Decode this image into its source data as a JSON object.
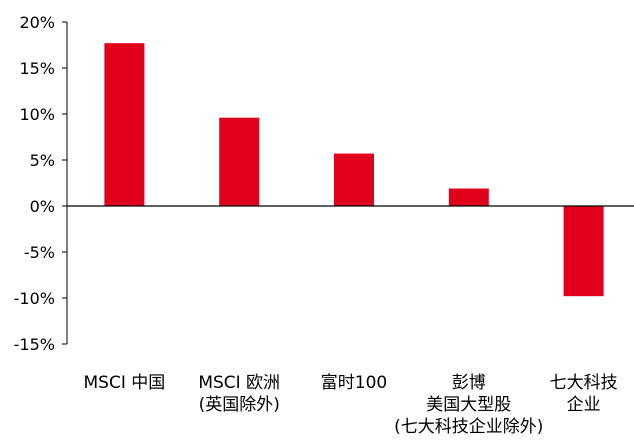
{
  "chart_data": {
    "type": "bar",
    "title": "",
    "xlabel": "",
    "ylabel": "",
    "categories": [
      [
        "MSCI 中国"
      ],
      [
        "MSCI 欧洲",
        "(英国除外)"
      ],
      [
        "富时100"
      ],
      [
        "彭博",
        "美国大型股",
        "(七大科技企业除外)"
      ],
      [
        "七大科技",
        "企业"
      ]
    ],
    "values": [
      17.7,
      9.6,
      5.7,
      1.9,
      -9.8
    ],
    "ylim": [
      -15,
      20
    ],
    "yticks": [
      20,
      15,
      10,
      5,
      0,
      -5,
      -10,
      -15
    ],
    "ytick_labels": [
      "20%",
      "15%",
      "10%",
      "5%",
      "0%",
      "-5%",
      "-10%",
      "-15%"
    ],
    "grid": false,
    "legend": "none",
    "colors": {
      "bar": "#E0001B",
      "axis": "#000000"
    }
  }
}
